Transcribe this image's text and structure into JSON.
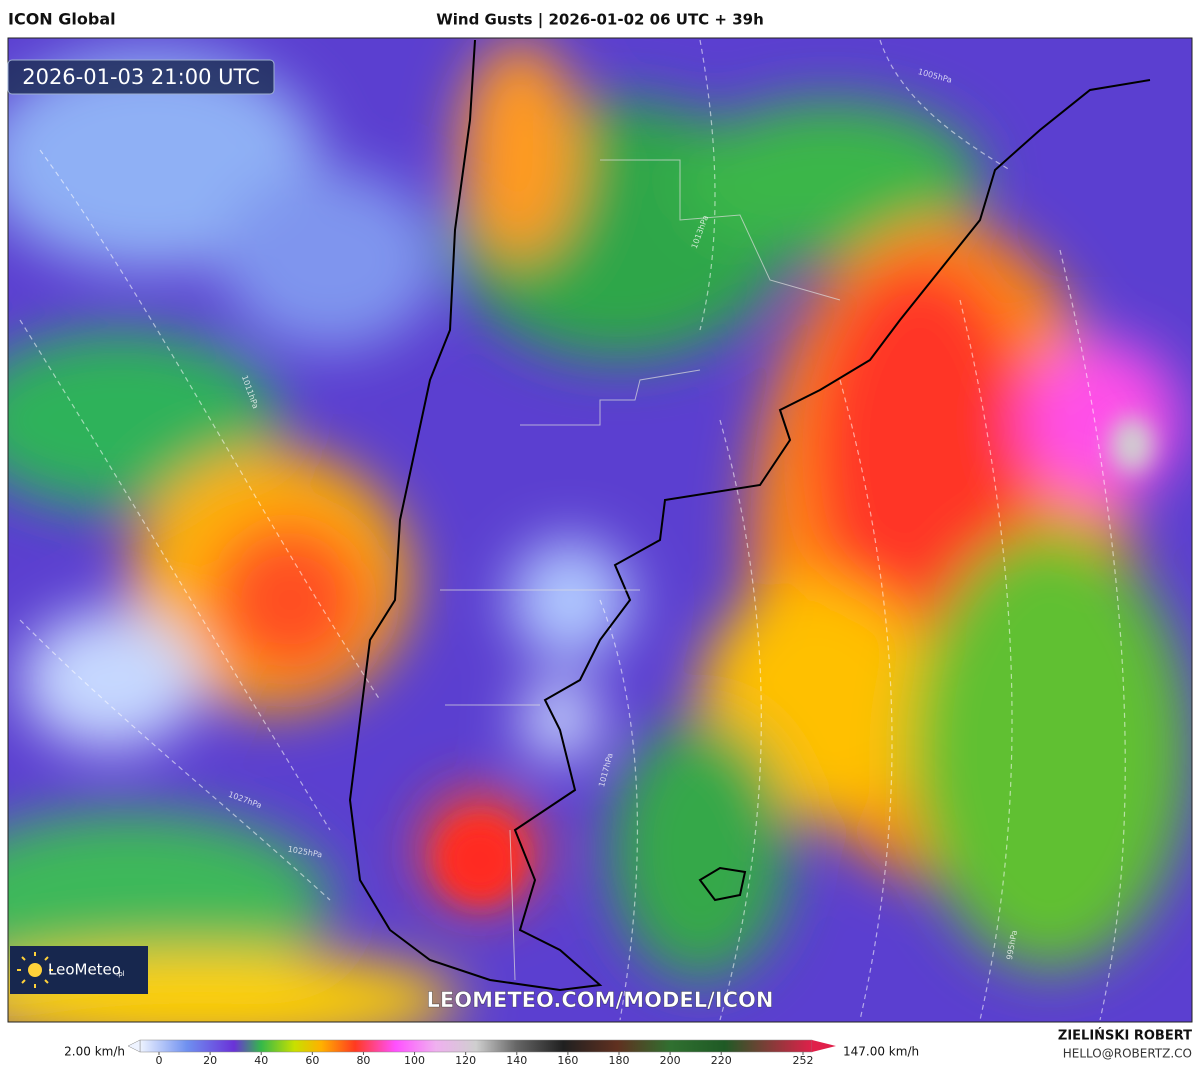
{
  "header": {
    "left": "ICON Global",
    "title": "Wind Gusts | 2026-01-02 06 UTC + 39h"
  },
  "map": {
    "valid_time": "2026-01-03 21:00 UTC",
    "logo": "LeoMeteo",
    "logo_suffix": ".pl",
    "url": "LEOMETEO.COM/MODEL/ICON",
    "isobar_labels": [
      "1013hPa",
      "1011hPa",
      "1027hPa",
      "1025hPa",
      "1017hPa",
      "1005hPa",
      "995hPa"
    ]
  },
  "colorbar": {
    "min_label": "2.00 km/h",
    "max_label": "147.00 km/h",
    "ticks": [
      0,
      20,
      40,
      60,
      80,
      100,
      120,
      140,
      160,
      180,
      200,
      220,
      252
    ]
  },
  "footer": {
    "author": "ZIELIŃSKI ROBERT",
    "email": "HELLO@ROBERTZ.CO"
  }
}
